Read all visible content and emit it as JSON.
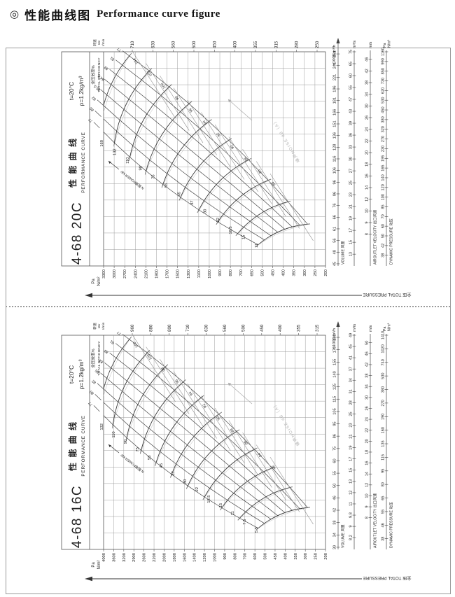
{
  "page": {
    "icon": "◎",
    "title_cjk": "性能曲线图",
    "title_en": "Performance curve figure"
  },
  "chart_data": [
    {
      "type": "line",
      "model": "4-68 20C",
      "title_cjk": "性 能 曲 线",
      "title_en": "PERFORMANCE CURVE",
      "temp": "t=20°C",
      "density": "ρ=1.2kg/m³",
      "rpm_unit": [
        "转速",
        "rev",
        "r/min"
      ],
      "rpm": [
        "710",
        "630",
        "560",
        "500",
        "450",
        "400",
        "355",
        "315",
        "280",
        "250"
      ],
      "pressure_unit": [
        "Pa",
        "N/m²"
      ],
      "pressure_axis_label": "全压 TOTAL PRESSURE",
      "pressure": [
        "3300",
        "3000",
        "2700",
        "2400",
        "2100",
        "1900",
        "1700",
        "1500",
        "1300",
        "1100",
        "1000",
        "900",
        "800",
        "700",
        "650",
        "500",
        "450",
        "400",
        "350",
        "300",
        "250",
        "200"
      ],
      "volume_name": "VOLUME 风量",
      "volume_unit": "×1000 m³/h",
      "volume": [
        "45",
        "48",
        "56",
        "61",
        "66",
        "76",
        "86",
        "96",
        "106",
        "116",
        "128",
        "136",
        "151",
        "166",
        "181",
        "196",
        "221",
        "241",
        "261"
      ],
      "m3s_unit": "m³/s",
      "m3s": [
        "13",
        "15",
        "17",
        "19",
        "21",
        "23",
        "25",
        "27",
        "30",
        "33",
        "36",
        "39",
        "43",
        "47",
        "55",
        "60",
        "65",
        "75"
      ],
      "velocity_name": "AIROUTLET VELOCITY 出口风速",
      "velocity_unit": "m/s",
      "velocity": [
        "8",
        "9",
        "10",
        "12",
        "14",
        "16",
        "18",
        "20",
        "22",
        "24",
        "26",
        "30",
        "34",
        "38",
        "42",
        "46"
      ],
      "dynamic_name": "DYNAMIC PRESSURE 动压",
      "dynamic_unit": [
        "Pa",
        "N/m²"
      ],
      "dynamic": [
        "38",
        "42",
        "50",
        "60",
        "70",
        "85",
        "100",
        "120",
        "140",
        "165",
        "195",
        "230",
        "270",
        "320",
        "380",
        "450",
        "530",
        "620",
        "730",
        "850",
        "990",
        "1160"
      ],
      "efficiency_name": "全压效率%",
      "efficiency_name_en": "TOTAL EFFICIENCY",
      "efficiency": [
        "77",
        "80",
        "82",
        "85.5",
        "84.5",
        "83",
        "81",
        "77"
      ],
      "power_name": "N 配用POWER kW",
      "power": [
        "160",
        "132",
        "110",
        "90",
        "75",
        "55",
        "45",
        "37",
        "30",
        "22",
        "18.5",
        "15",
        "11"
      ],
      "noise_name": "噪声NOISE dB（A）",
      "noise": [
        "104",
        "102",
        "100",
        "98",
        "96",
        "94",
        "92",
        "90",
        "88",
        "86",
        "84"
      ]
    },
    {
      "type": "line",
      "model": "4-68 16C",
      "title_cjk": "性 能 曲 线",
      "title_en": "PERFORMANCE CURVE",
      "temp": "t=20°C",
      "density": "ρ=1.2kg/m³",
      "rpm_unit": [
        "转速",
        "rev",
        "r/min"
      ],
      "rpm": [
        "960",
        "880",
        "800",
        "710",
        "630",
        "560",
        "500",
        "450",
        "400",
        "355",
        "315"
      ],
      "pressure_unit": [
        "Pa",
        "N/m²"
      ],
      "pressure_axis_label": "全压 TOTAL PRESSURE",
      "pressure": [
        "4000",
        "3600",
        "3200",
        "2900",
        "2600",
        "2200",
        "2000",
        "1800",
        "1600",
        "1400",
        "1200",
        "1000",
        "900",
        "800",
        "700",
        "600",
        "500",
        "450",
        "400",
        "350",
        "300",
        "250",
        "200"
      ],
      "volume_name": "VOLUME 风量",
      "volume_unit": "×1000 m³/h",
      "volume": [
        "30",
        "34",
        "38",
        "42",
        "46",
        "50",
        "55",
        "60",
        "75",
        "86",
        "95",
        "105",
        "115",
        "125",
        "140",
        "155",
        "170",
        "185"
      ],
      "m3s_unit": "m³/s",
      "m3s": [
        "8.2",
        "9",
        "9.8",
        "11",
        "12",
        "13",
        "15",
        "17",
        "19",
        "21",
        "23",
        "25",
        "28",
        "31",
        "34",
        "37",
        "41",
        "45",
        "49"
      ],
      "velocity_name": "AIROUTLET VELOCITY 出口风速",
      "velocity_unit": "m/s",
      "velocity": [
        "8",
        "9",
        "10",
        "12",
        "14",
        "16",
        "18",
        "20",
        "22",
        "24",
        "26",
        "30",
        "34",
        "38",
        "42",
        "46",
        "50"
      ],
      "dynamic_name": "DYNAMIC PRESSURE 动压",
      "dynamic_unit": [
        "Pa",
        "N/m²"
      ],
      "dynamic": [
        "38",
        "46",
        "55",
        "65",
        "80",
        "95",
        "115",
        "135",
        "160",
        "190",
        "270",
        "380",
        "530",
        "740",
        "1020",
        "1410"
      ],
      "efficiency_name": "全压效率%",
      "efficiency_name_en": "TOTAL EFFICIENCY",
      "efficiency": [
        "77",
        "80",
        "82",
        "85",
        "84",
        "83",
        "81",
        "77"
      ],
      "power_name": "N 配用POWER kW",
      "power": [
        "132",
        "110",
        "90",
        "75",
        "55",
        "45",
        "37",
        "30",
        "22",
        "18.5",
        "15",
        "11",
        "7.5",
        "5.5"
      ],
      "noise_name": "噪声NOISE dB（A）",
      "noise": [
        "102",
        "100",
        "98",
        "96",
        "94",
        "92",
        "90",
        "88",
        "86",
        "84",
        "82"
      ]
    }
  ]
}
